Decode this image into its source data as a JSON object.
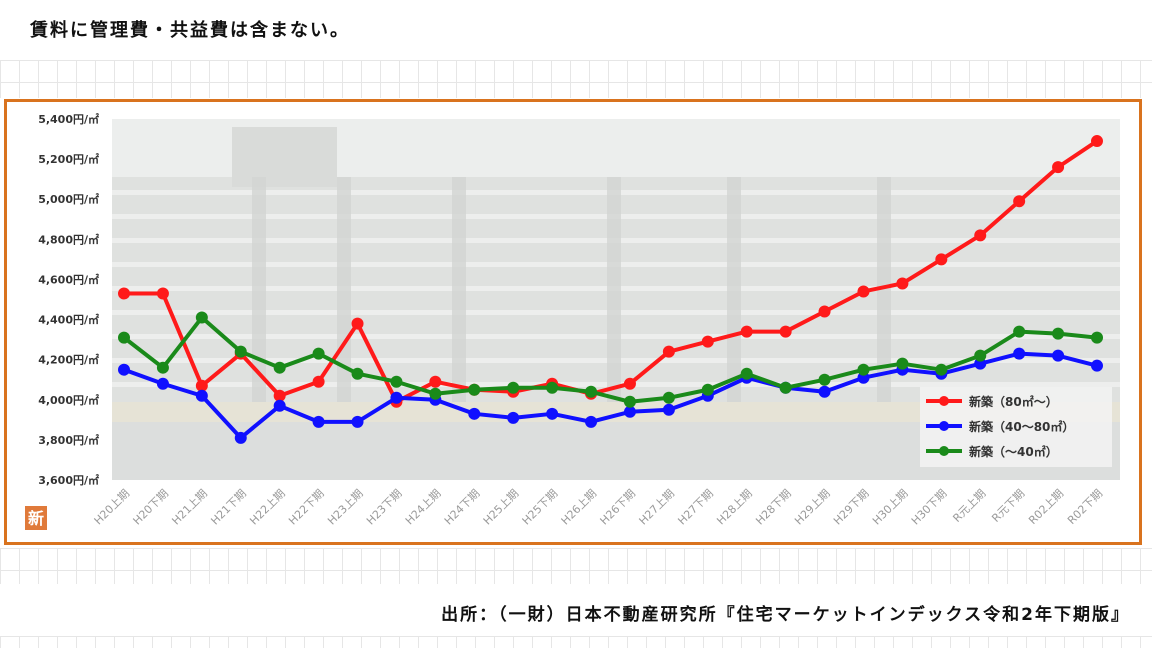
{
  "header": {
    "note": "賃料に管理費・共益費は含まない。"
  },
  "footer": {
    "source": "出所：（一財）日本不動産研究所『住宅マーケットインデックス令和2年下期版』"
  },
  "logo": {
    "text": "新",
    "color": "#e07a3a"
  },
  "chart_data": {
    "type": "line",
    "categories": [
      "H20上期",
      "H20下期",
      "H21上期",
      "H21下期",
      "H22上期",
      "H22下期",
      "H23上期",
      "H23下期",
      "H24上期",
      "H24下期",
      "H25上期",
      "H25下期",
      "H26上期",
      "H26下期",
      "H27上期",
      "H27下期",
      "H28上期",
      "H28下期",
      "H29上期",
      "H29下期",
      "H30上期",
      "H30下期",
      "R元上期",
      "R元下期",
      "R02上期",
      "R02下期"
    ],
    "ylim": [
      3600,
      5400
    ],
    "yticks": [
      3600,
      3800,
      4000,
      4200,
      4400,
      4600,
      4800,
      5000,
      5200,
      5400
    ],
    "ytick_labels": [
      "3,600円/㎡",
      "3,800円/㎡",
      "4,000円/㎡",
      "4,200円/㎡",
      "4,400円/㎡",
      "4,600円/㎡",
      "4,800円/㎡",
      "5,000円/㎡",
      "5,200円/㎡",
      "5,400円/㎡"
    ],
    "legend_position": "bottom-right",
    "series": [
      {
        "name": "新築（80㎡～）",
        "color": "#ff1a1a",
        "values": [
          4530,
          4530,
          4070,
          4230,
          4020,
          4090,
          4380,
          3990,
          4090,
          4050,
          4040,
          4080,
          4030,
          4080,
          4240,
          4290,
          4340,
          4340,
          4440,
          4540,
          4580,
          4700,
          4820,
          4990,
          5160,
          5290
        ]
      },
      {
        "name": "新築（40～80㎡）",
        "color": "#1010ff",
        "values": [
          4150,
          4080,
          4020,
          3810,
          3970,
          3890,
          3890,
          4010,
          4000,
          3930,
          3910,
          3930,
          3890,
          3940,
          3950,
          4020,
          4110,
          4060,
          4040,
          4110,
          4150,
          4130,
          4180,
          4230,
          4220,
          4170
        ]
      },
      {
        "name": "新築（～40㎡）",
        "color": "#1a8a1a",
        "values": [
          4310,
          4160,
          4410,
          4240,
          4160,
          4230,
          4130,
          4090,
          4030,
          4050,
          4060,
          4060,
          4040,
          3990,
          4010,
          4050,
          4130,
          4060,
          4100,
          4150,
          4180,
          4150,
          4220,
          4340,
          4330,
          4310
        ]
      }
    ]
  }
}
